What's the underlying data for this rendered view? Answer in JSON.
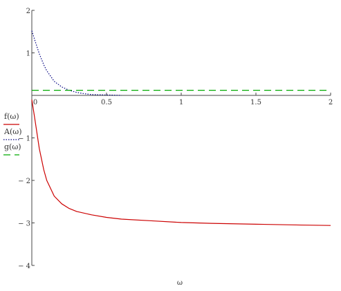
{
  "chart_data": {
    "type": "line",
    "title": "",
    "xlabel": "ω",
    "ylabel": "",
    "xlim": [
      0,
      2
    ],
    "ylim": [
      -4,
      2
    ],
    "xticks": [
      {
        "v": 0,
        "label": "0"
      },
      {
        "v": 0.5,
        "label": "0.5"
      },
      {
        "v": 1,
        "label": "1"
      },
      {
        "v": 1.5,
        "label": "1.5"
      },
      {
        "v": 2,
        "label": "2"
      }
    ],
    "yticks": [
      {
        "v": 2,
        "label": "2"
      },
      {
        "v": 1,
        "label": "1"
      },
      {
        "v": -1,
        "label": "− 1"
      },
      {
        "v": -2,
        "label": "− 2"
      },
      {
        "v": -3,
        "label": "− 3"
      },
      {
        "v": -4,
        "label": "− 4"
      }
    ],
    "grid": false,
    "legend_position": "left",
    "series": [
      {
        "name": "f(ω)",
        "color": "#cc0000",
        "style": "solid",
        "x": [
          0.0,
          0.02,
          0.05,
          0.08,
          0.1,
          0.15,
          0.2,
          0.25,
          0.3,
          0.4,
          0.5,
          0.6,
          0.8,
          1.0,
          1.2,
          1.5,
          1.8,
          2.0
        ],
        "y": [
          -0.1,
          -0.55,
          -1.25,
          -1.75,
          -2.0,
          -2.37,
          -2.55,
          -2.66,
          -2.73,
          -2.81,
          -2.87,
          -2.91,
          -2.95,
          -2.99,
          -3.01,
          -3.03,
          -3.05,
          -3.06
        ]
      },
      {
        "name": "A(ω)",
        "color": "#000080",
        "style": "dotted",
        "x": [
          0.0,
          0.02,
          0.05,
          0.08,
          0.1,
          0.15,
          0.2,
          0.25,
          0.3,
          0.35,
          0.4,
          0.5,
          0.6
        ],
        "y": [
          1.52,
          1.3,
          0.98,
          0.72,
          0.58,
          0.33,
          0.2,
          0.12,
          0.07,
          0.04,
          0.02,
          0.01,
          0.0
        ]
      },
      {
        "name": "g(ω)",
        "color": "#00aa00",
        "style": "dashed",
        "x": [
          0.0,
          2.0
        ],
        "y": [
          0.12,
          0.12
        ]
      }
    ]
  }
}
